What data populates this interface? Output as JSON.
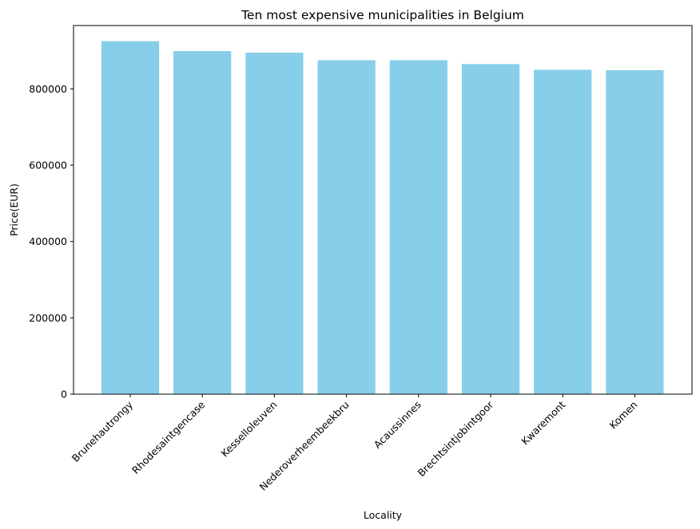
{
  "chart_data": {
    "type": "bar",
    "title": "Ten most expensive municipalities in Belgium",
    "xlabel": "Locality",
    "ylabel": "Price(EUR)",
    "categories": [
      "Brunehautrongy",
      "Rhodesaintgencase",
      "Kesselloleuven",
      "Nederoverheembeekbru",
      "Acaussinnes",
      "Brechtsintjobintgoor",
      "Kwaremont",
      "Komen"
    ],
    "values": [
      925000,
      899000,
      895000,
      875000,
      875000,
      865000,
      850000,
      849000
    ],
    "ylim": [
      0,
      966000
    ],
    "yticks": [
      0,
      200000,
      400000,
      600000,
      800000
    ],
    "bar_color": "#87ceeb",
    "grid": false
  }
}
